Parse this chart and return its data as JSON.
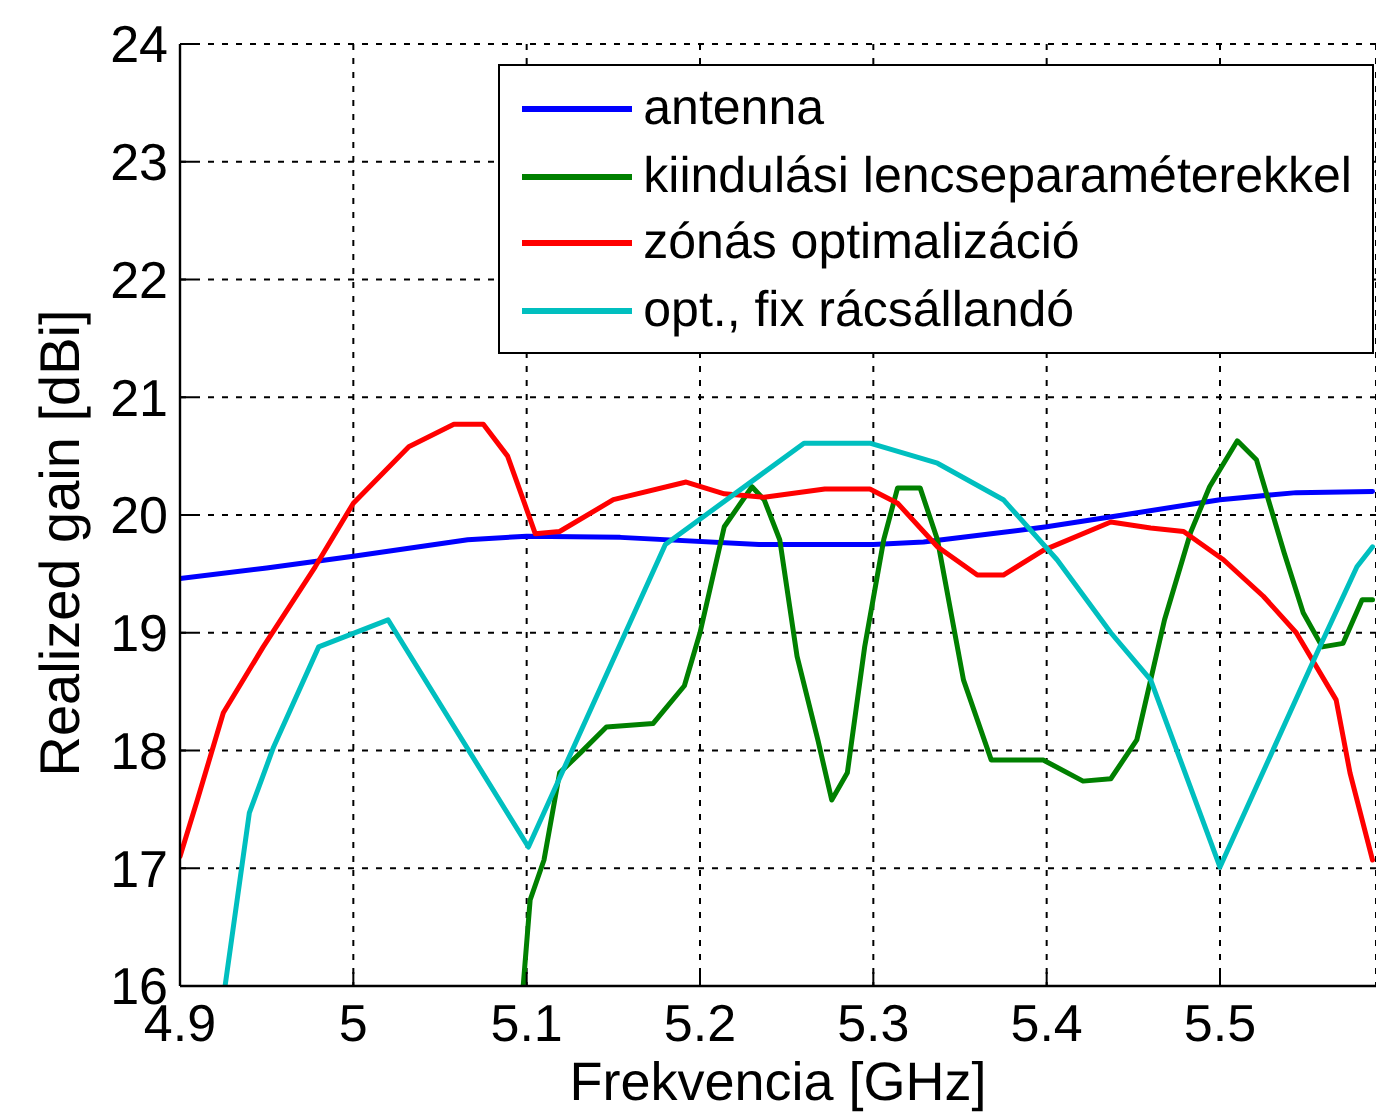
{
  "chart_data": {
    "type": "line",
    "xlabel": "Frekvencia [GHz]",
    "ylabel": "Realized gain [dBi]",
    "xlim": [
      4.9,
      5.59
    ],
    "ylim": [
      16,
      24
    ],
    "xticks": [
      4.9,
      5,
      5.1,
      5.2,
      5.3,
      5.4,
      5.5
    ],
    "yticks": [
      16,
      17,
      18,
      19,
      20,
      21,
      22,
      23,
      24
    ],
    "grid": true,
    "legend": "top right",
    "series": [
      {
        "name": "antenna",
        "color": "#0000ff",
        "x": [
          4.9,
          4.95,
          5.0,
          5.066,
          5.1,
          5.154,
          5.234,
          5.3,
          5.329,
          5.368,
          5.4,
          5.444,
          5.5,
          5.544,
          5.588
        ],
        "values": [
          19.46,
          19.55,
          19.65,
          19.79,
          19.82,
          19.81,
          19.75,
          19.75,
          19.77,
          19.84,
          19.9,
          20.0,
          20.13,
          20.19,
          20.2
        ]
      },
      {
        "name": "kiindulási lencseparaméterekkel",
        "color": "#008000",
        "x": [
          5.098,
          5.102,
          5.11,
          5.119,
          5.131,
          5.146,
          5.173,
          5.191,
          5.2,
          5.214,
          5.23,
          5.237,
          5.246,
          5.256,
          5.268,
          5.276,
          5.285,
          5.295,
          5.306,
          5.314,
          5.327,
          5.337,
          5.352,
          5.368,
          5.383,
          5.398,
          5.421,
          5.437,
          5.452,
          5.468,
          5.483,
          5.494,
          5.51,
          5.521,
          5.537,
          5.548,
          5.559,
          5.571,
          5.582,
          5.588
        ],
        "values": [
          16.0,
          16.73,
          17.07,
          17.81,
          17.98,
          18.2,
          18.23,
          18.55,
          19.0,
          19.9,
          20.24,
          20.13,
          19.79,
          18.8,
          18.09,
          17.58,
          17.81,
          18.88,
          19.79,
          20.23,
          20.23,
          19.79,
          18.6,
          17.92,
          17.92,
          17.92,
          17.74,
          17.76,
          18.09,
          19.11,
          19.85,
          20.24,
          20.63,
          20.47,
          19.68,
          19.17,
          18.88,
          18.91,
          19.28,
          19.28
        ]
      },
      {
        "name": "zónás optimalizáció",
        "color": "#ff0000",
        "x": [
          4.9,
          4.91,
          4.925,
          4.948,
          4.978,
          5.0,
          5.032,
          5.058,
          5.075,
          5.089,
          5.098,
          5.105,
          5.119,
          5.15,
          5.192,
          5.214,
          5.237,
          5.272,
          5.298,
          5.314,
          5.337,
          5.36,
          5.375,
          5.398,
          5.437,
          5.46,
          5.479,
          5.502,
          5.525,
          5.544,
          5.567,
          5.575,
          5.588
        ],
        "values": [
          17.1,
          17.58,
          18.32,
          18.88,
          19.56,
          20.1,
          20.58,
          20.77,
          20.77,
          20.5,
          20.13,
          19.84,
          19.86,
          20.13,
          20.28,
          20.18,
          20.15,
          20.22,
          20.22,
          20.1,
          19.73,
          19.49,
          19.49,
          19.7,
          19.94,
          19.89,
          19.86,
          19.62,
          19.31,
          19.0,
          18.43,
          17.81,
          17.07
        ]
      },
      {
        "name": "opt., fix rácsállandó",
        "color": "#00bfbf",
        "x": [
          4.926,
          4.94,
          4.954,
          4.98,
          5.02,
          5.101,
          5.18,
          5.234,
          5.26,
          5.298,
          5.337,
          5.375,
          5.406,
          5.437,
          5.46,
          5.5,
          5.556,
          5.579,
          5.588
        ],
        "values": [
          16.0,
          17.47,
          18.03,
          18.88,
          19.11,
          17.18,
          19.75,
          20.33,
          20.61,
          20.61,
          20.44,
          20.13,
          19.62,
          19.0,
          18.6,
          17.01,
          18.83,
          19.56,
          19.73
        ]
      }
    ]
  }
}
